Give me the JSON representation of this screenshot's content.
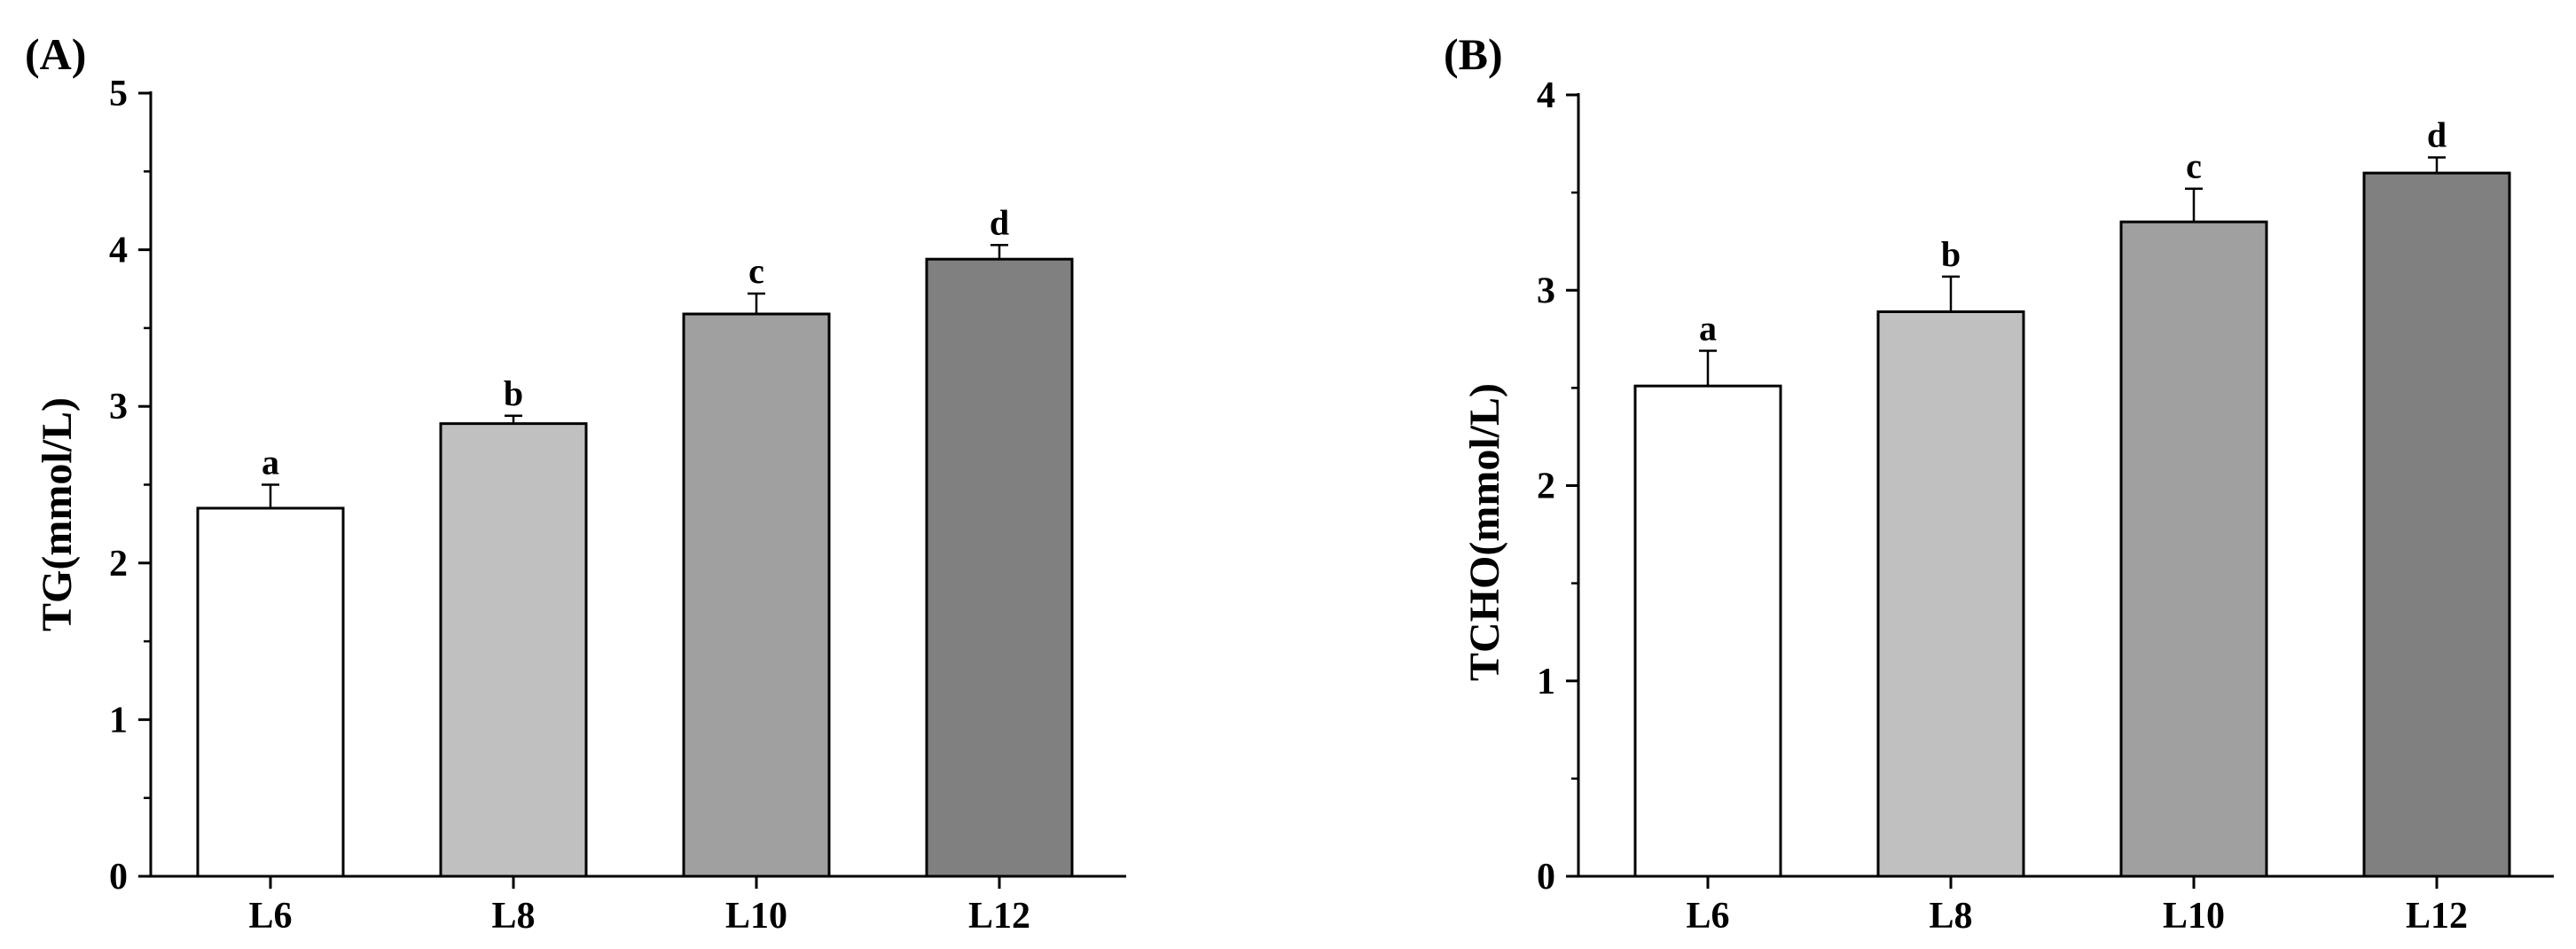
{
  "chart_data": [
    {
      "type": "bar",
      "panel_label": "(A)",
      "categories": [
        "L6",
        "L8",
        "L10",
        "L12"
      ],
      "values": [
        2.35,
        2.89,
        3.59,
        3.94
      ],
      "errors": [
        0.15,
        0.05,
        0.13,
        0.09
      ],
      "significance": [
        "a",
        "b",
        "c",
        "d"
      ],
      "colors": [
        "#ffffff",
        "#c0c0c0",
        "#a0a0a0",
        "#808080"
      ],
      "ylabel": "TG(mmol/L)",
      "ylim": [
        0,
        5
      ],
      "yticks": [
        "0",
        "1",
        "2",
        "3",
        "4",
        "5"
      ],
      "grid": false
    },
    {
      "type": "bar",
      "panel_label": "(B)",
      "categories": [
        "L6",
        "L8",
        "L10",
        "L12"
      ],
      "values": [
        2.51,
        2.89,
        3.35,
        3.6
      ],
      "errors": [
        0.18,
        0.18,
        0.17,
        0.08
      ],
      "significance": [
        "a",
        "b",
        "c",
        "d"
      ],
      "colors": [
        "#ffffff",
        "#c0c0c0",
        "#a0a0a0",
        "#808080"
      ],
      "ylabel": "TCHO(mmol/L)",
      "ylim": [
        0,
        4
      ],
      "yticks": [
        "0",
        "1",
        "2",
        "3",
        "4"
      ],
      "grid": false
    }
  ]
}
